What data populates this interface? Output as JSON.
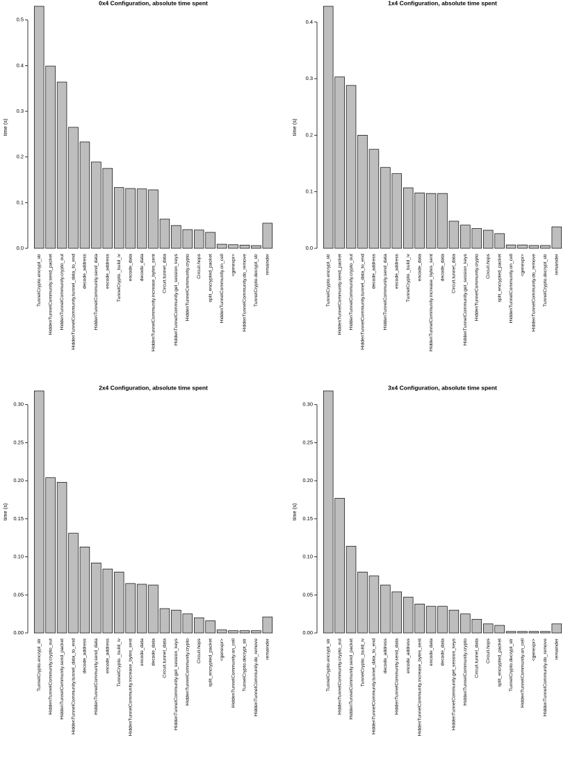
{
  "chart_data": [
    {
      "type": "bar",
      "title": "0x4 Configuration, absolute time spent",
      "ylabel": "time (s)",
      "color": "#bebebe",
      "categories": [
        "TunnelCrypto.encrypt_str",
        "HiddenTunnelCommunity.send_packet",
        "HiddenTunnelCommunity.crypto_out",
        "HiddenTunnelCommunity.tunnel_data_to_end",
        "decode_address",
        "HiddenTunnelCommunity.send_data",
        "encode_address",
        "TunnelCrypto._build_iv",
        "encode_data",
        "decode_data",
        "HiddenTunnelCommunity.increase_bytes_sent",
        "Circuit.tunnel_data",
        "HiddenTunnelCommunity.get_session_keys",
        "HiddenTunnelCommunity.crypto",
        "Circuit.hops",
        "split_encrypted_packet",
        "HiddenTunnelCommunity.on_cell",
        "<genexpr>",
        "HiddenTunnelCommunity.do_remove",
        "TunnelCrypto.decrypt_str",
        "remainder"
      ],
      "values": [
        0.53,
        0.399,
        0.364,
        0.265,
        0.233,
        0.189,
        0.175,
        0.133,
        0.131,
        0.13,
        0.128,
        0.064,
        0.05,
        0.041,
        0.04,
        0.035,
        0.009,
        0.008,
        0.007,
        0.006,
        0.055
      ],
      "ylim": [
        0,
        0.53
      ],
      "yticks": [
        {
          "value": 0,
          "label": "0.0"
        },
        0.1,
        0.2,
        0.3,
        0.4,
        0.5
      ]
    },
    {
      "type": "bar",
      "title": "1x4 Configuration, absolute time spent",
      "ylabel": "time (s)",
      "color": "#bebebe",
      "categories": [
        "TunnelCrypto.encrypt_str",
        "HiddenTunnelCommunity.send_packet",
        "HiddenTunnelCommunity.crypto_out",
        "HiddenTunnelCommunity.tunnel_data_to_end",
        "decode_address",
        "HiddenTunnelCommunity.send_data",
        "encode_address",
        "TunnelCrypto._build_iv",
        "encode_data",
        "HiddenTunnelCommunity.increase_bytes_sent",
        "decode_data",
        "Circuit.tunnel_data",
        "HiddenTunnelCommunity.get_session_keys",
        "HiddenTunnelCommunity.crypto",
        "Circuit.hops",
        "split_encrypted_packet",
        "HiddenTunnelCommunity.on_cell",
        "<genexpr>",
        "HiddenTunnelCommunity.do_remove",
        "TunnelCrypto.decrypt_str",
        "remainder"
      ],
      "values": [
        0.428,
        0.303,
        0.288,
        0.2,
        0.175,
        0.143,
        0.132,
        0.107,
        0.098,
        0.097,
        0.097,
        0.048,
        0.041,
        0.035,
        0.032,
        0.026,
        0.006,
        0.006,
        0.005,
        0.005,
        0.038
      ],
      "ylim": [
        0,
        0.428
      ],
      "yticks": [
        {
          "value": 0,
          "label": "0.0"
        },
        0.1,
        0.2,
        0.3,
        0.4
      ]
    },
    {
      "type": "bar",
      "title": "2x4 Configuration, absolute time spent",
      "ylabel": "time (s)",
      "color": "#bebebe",
      "categories": [
        "TunnelCrypto.encrypt_str",
        "HiddenTunnelCommunity.crypto_out",
        "HiddenTunnelCommunity.send_packet",
        "HiddenTunnelCommunity.tunnel_data_to_end",
        "decode_address",
        "HiddenTunnelCommunity.send_data",
        "encode_address",
        "TunnelCrypto._build_iv",
        "HiddenTunnelCommunity.increase_bytes_sent",
        "encode_data",
        "decode_data",
        "Circuit.tunnel_data",
        "HiddenTunnelCommunity.get_session_keys",
        "HiddenTunnelCommunity.crypto",
        "Circuit.hops",
        "split_encrypted_packet",
        "<genexpr>",
        "HiddenTunnelCommunity.on_cell",
        "TunnelCrypto.decrypt_str",
        "HiddenTunnelCommunity.do_remove",
        "remainder"
      ],
      "values": [
        0.318,
        0.204,
        0.198,
        0.131,
        0.113,
        0.092,
        0.084,
        0.08,
        0.065,
        0.064,
        0.063,
        0.032,
        0.03,
        0.025,
        0.02,
        0.016,
        0.004,
        0.003,
        0.003,
        0.003,
        0.021
      ],
      "ylim": [
        0,
        0.318
      ],
      "yticks": [
        {
          "value": 0,
          "label": "0.00"
        },
        0.05,
        {
          "value": 0.1,
          "label": "0.10"
        },
        0.15,
        {
          "value": 0.2,
          "label": "0.20"
        },
        0.25,
        {
          "value": 0.3,
          "label": "0.30"
        }
      ]
    },
    {
      "type": "bar",
      "title": "3x4 Configuration, absolute time spent",
      "ylabel": "time (s)",
      "color": "#bebebe",
      "categories": [
        "TunnelCrypto.encrypt_str",
        "HiddenTunnelCommunity.crypto_out",
        "HiddenTunnelCommunity.send_packet",
        "TunnelCrypto._build_iv",
        "HiddenTunnelCommunity.tunnel_data_to_end",
        "decode_address",
        "HiddenTunnelCommunity.send_data",
        "encode_address",
        "HiddenTunnelCommunity.increase_bytes_sent",
        "encode_data",
        "decode_data",
        "HiddenTunnelCommunity.get_session_keys",
        "HiddenTunnelCommunity.crypto",
        "Circuit.tunnel_data",
        "Circuit.hops",
        "split_encrypted_packet",
        "TunnelCrypto.decrypt_str",
        "HiddenTunnelCommunity.on_cell",
        "<genexpr>",
        "HiddenTunnelCommunity.do_remove",
        "remainder"
      ],
      "values": [
        0.318,
        0.177,
        0.114,
        0.08,
        0.075,
        0.063,
        0.054,
        0.047,
        0.038,
        0.035,
        0.035,
        0.03,
        0.025,
        0.018,
        0.012,
        0.01,
        0.002,
        0.002,
        0.002,
        0.002,
        0.012
      ],
      "ylim": [
        0,
        0.318
      ],
      "yticks": [
        {
          "value": 0,
          "label": "0.00"
        },
        0.05,
        {
          "value": 0.1,
          "label": "0.10"
        },
        0.15,
        {
          "value": 0.2,
          "label": "0.20"
        },
        0.25,
        {
          "value": 0.3,
          "label": "0.30"
        }
      ]
    }
  ]
}
